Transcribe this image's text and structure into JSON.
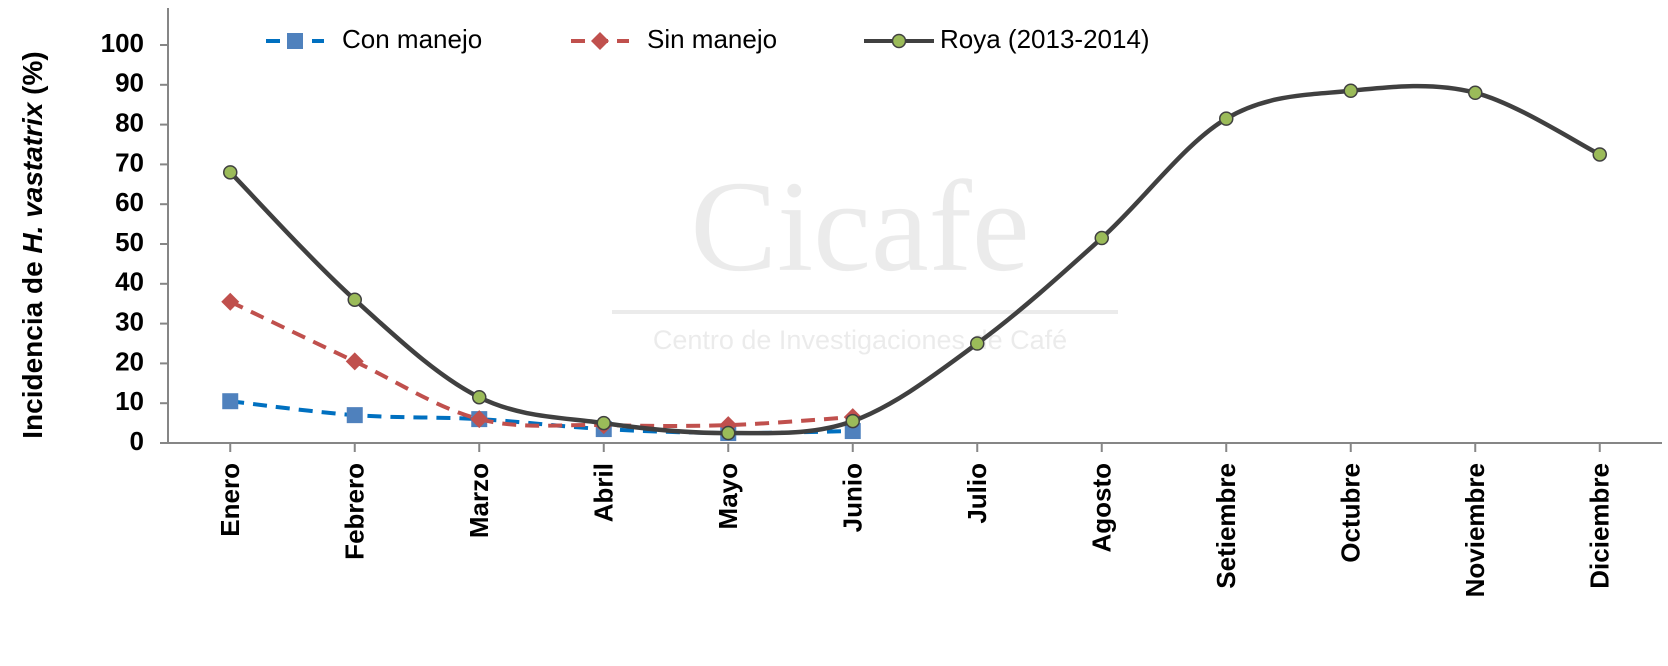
{
  "chart_data": {
    "type": "line",
    "y_label": [
      "Incidencia de ",
      "H. vastatrix",
      " (%)"
    ],
    "watermark": {
      "title": "Cicafe",
      "subtitle": "Centro de Investigaciones de Café"
    },
    "categories": [
      "Enero",
      "Febrero",
      "Marzo",
      "Abril",
      "Mayo",
      "Junio",
      "Julio",
      "Agosto",
      "Setiembre",
      "Octubre",
      "Noviembre",
      "Diciembre"
    ],
    "series": [
      {
        "name": "Con manejo",
        "color": "#0070c0",
        "marker_color": "#4f81bd",
        "marker": "square",
        "dash": true,
        "values": [
          10.5,
          7,
          6,
          3.5,
          2.5,
          3,
          null,
          null,
          null,
          null,
          null,
          null
        ]
      },
      {
        "name": "Sin manejo",
        "color": "#c0504d",
        "marker_color": "#c0504d",
        "marker": "diamond",
        "dash": true,
        "values": [
          35.5,
          20.5,
          6,
          4.5,
          4.5,
          6.5,
          null,
          null,
          null,
          null,
          null,
          null
        ]
      },
      {
        "name": "Roya (2013-2014)",
        "color": "#404040",
        "marker_color": "#9bbb59",
        "marker": "circle",
        "dash": false,
        "values": [
          68,
          36,
          11.5,
          5,
          2.5,
          5.5,
          25,
          51.5,
          81.5,
          88.5,
          88,
          72.5
        ]
      }
    ],
    "ylim": [
      0,
      100
    ],
    "yticks": [
      0,
      10,
      20,
      30,
      40,
      50,
      60,
      70,
      80,
      90,
      100
    ],
    "grid": false,
    "smooth": true
  }
}
